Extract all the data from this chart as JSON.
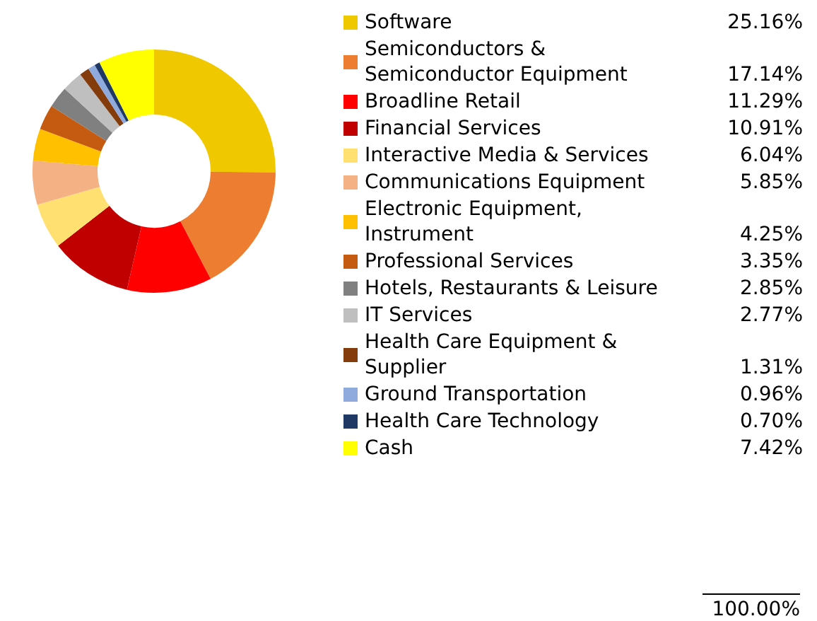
{
  "chart_data": {
    "type": "donut",
    "categories": [
      "Software",
      "Semiconductors & Semiconductor Equipment",
      "Broadline Retail",
      "Financial Services",
      "Interactive Media & Services",
      "Communications Equipment",
      "Electronic Equipment, Instrument",
      "Professional Services",
      "Hotels, Restaurants & Leisure",
      "IT Services",
      "Health Care Equipment & Supplier",
      "Ground Transportation",
      "Health Care Technology",
      "Cash"
    ],
    "values": [
      25.16,
      17.14,
      11.29,
      10.91,
      6.04,
      5.85,
      4.25,
      3.35,
      2.85,
      2.77,
      1.31,
      0.96,
      0.7,
      7.42
    ],
    "value_labels": [
      "25.16%",
      "17.14%",
      "11.29%",
      "10.91%",
      "6.04%",
      "5.85%",
      "4.25%",
      "3.35%",
      "2.85%",
      "2.77%",
      "1.31%",
      "0.96%",
      "0.70%",
      "7.42%"
    ],
    "colors": [
      "#f0c800",
      "#ed7d31",
      "#ff0000",
      "#c00000",
      "#ffe070",
      "#f4b183",
      "#ffc000",
      "#c55a11",
      "#808080",
      "#bfbfbf",
      "#843c0c",
      "#8faadc",
      "#203864",
      "#ffff00"
    ],
    "legend": "right",
    "annotations": [
      "100.00%"
    ]
  }
}
